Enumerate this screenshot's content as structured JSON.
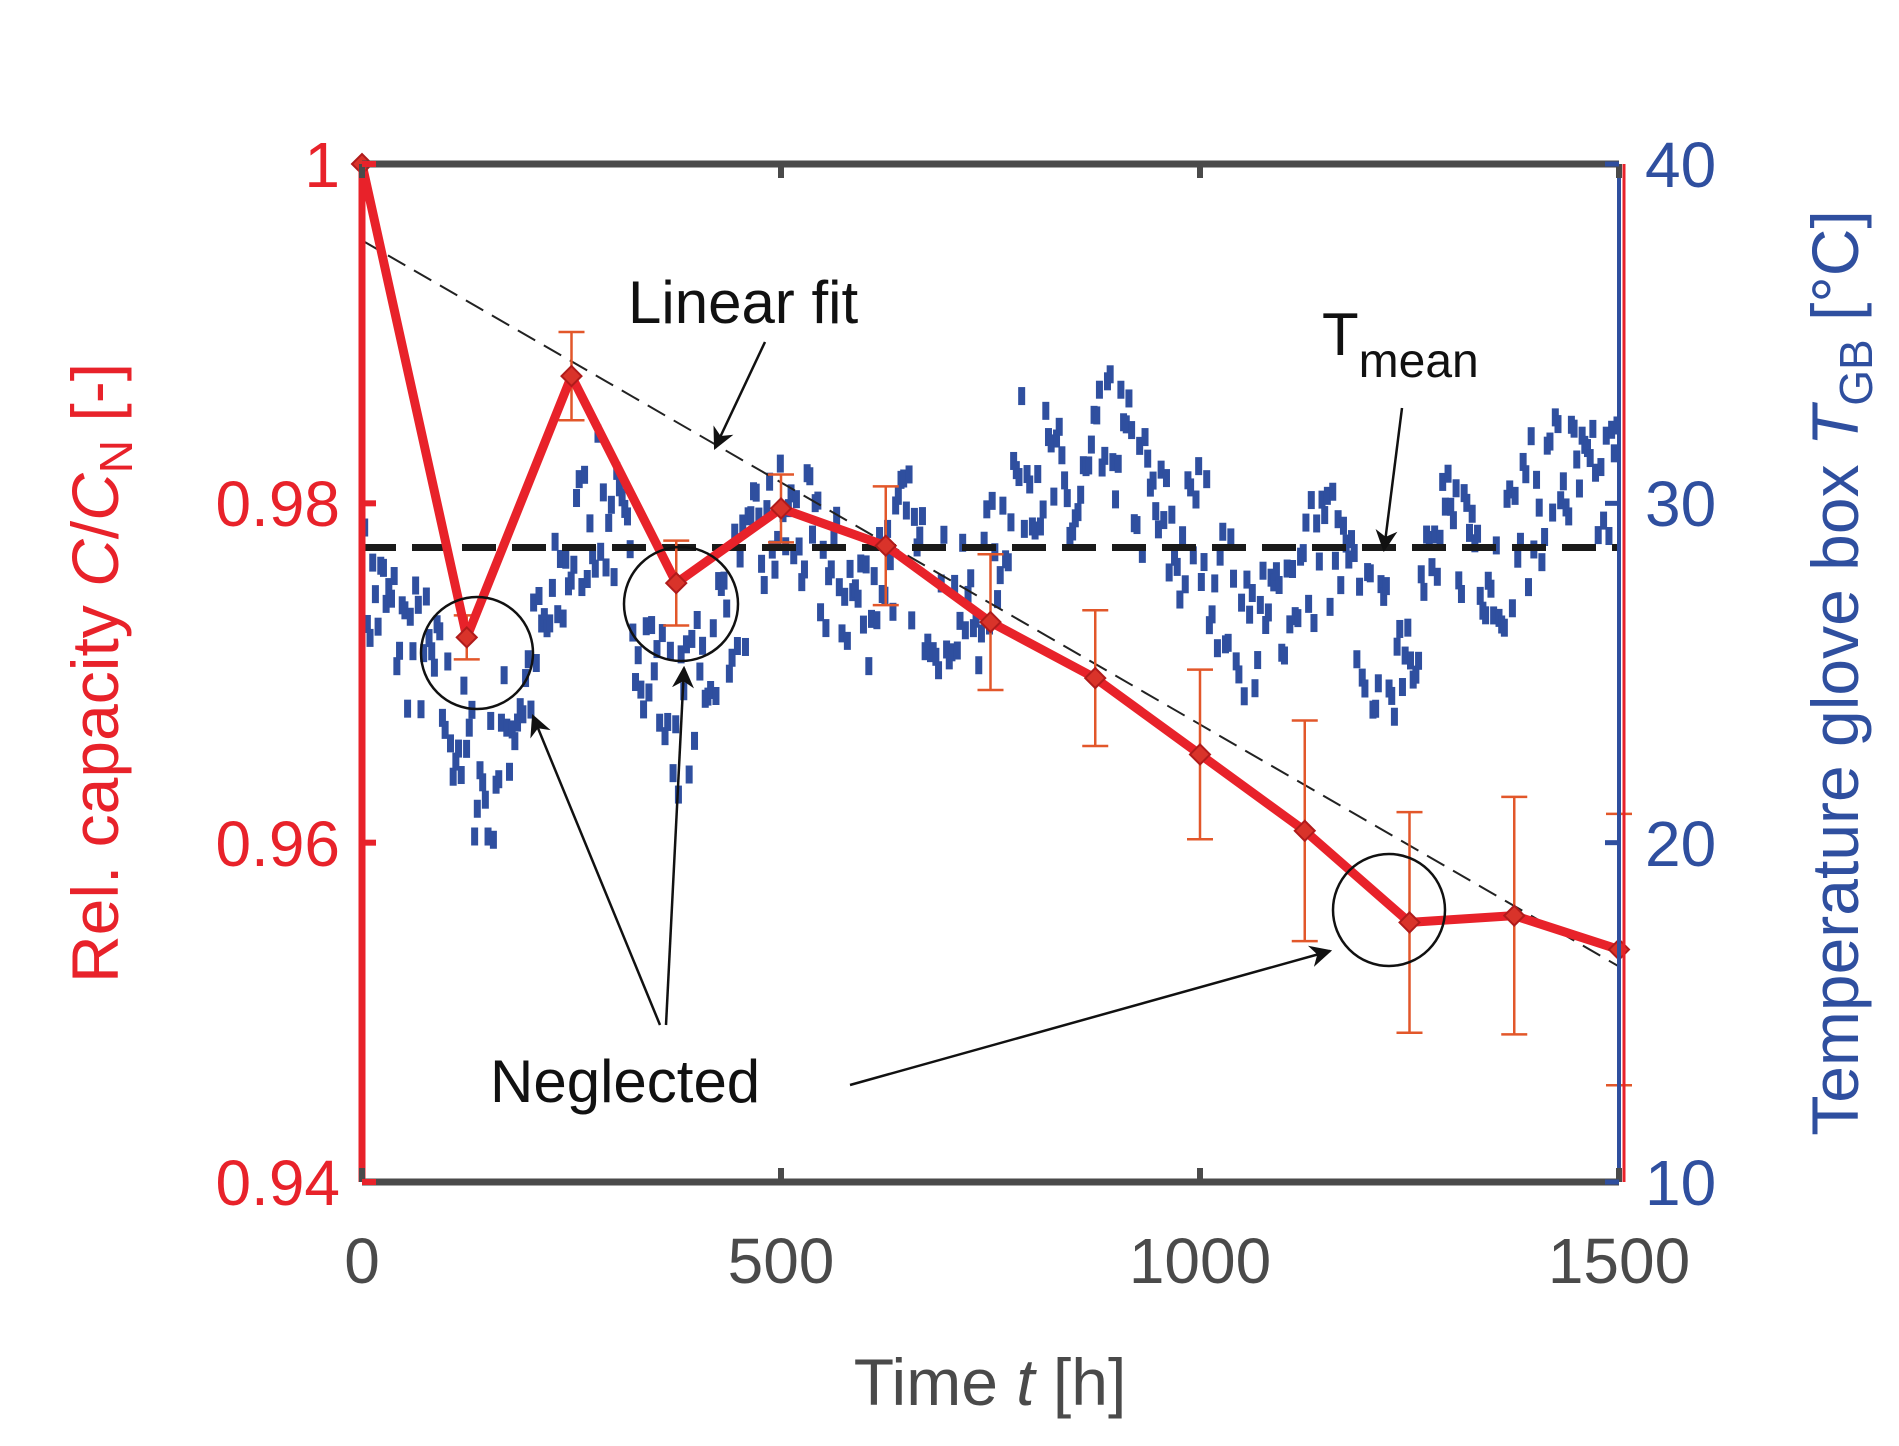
{
  "chart_data": {
    "type": "line",
    "xlabel": {
      "prefix": "Time ",
      "italic": "t",
      "suffix": " [h]"
    },
    "ylabel_left": {
      "prefix": "Rel. capacity ",
      "italic1": "C",
      "slash": "/",
      "italic2": "C",
      "sub": "N",
      "suffix": " [-]"
    },
    "ylabel_right": {
      "prefix": "Temperature glove box ",
      "italic": "T",
      "sub": "GB",
      "suffix": " [°C]"
    },
    "xlim": [
      0,
      1500
    ],
    "ylim_left": [
      0.94,
      1.0
    ],
    "ylim_right": [
      10,
      40
    ],
    "x_ticks": [
      "0",
      "500",
      "1000",
      "1500"
    ],
    "x_tick_values": [
      0,
      500,
      1000,
      1500
    ],
    "y_left_ticks": [
      "0.94",
      "0.96",
      "0.98",
      "1"
    ],
    "y_left_tick_values": [
      0.94,
      0.96,
      0.98,
      1.0
    ],
    "y_right_ticks": [
      "10",
      "20",
      "30",
      "40"
    ],
    "y_right_tick_values": [
      10,
      20,
      30,
      40
    ],
    "series": [
      {
        "name": "Relative capacity",
        "axis": "left",
        "color": "#e8222a",
        "x": [
          0,
          125,
          250,
          375,
          500,
          625,
          750,
          875,
          1000,
          1125,
          1250,
          1375,
          1500
        ],
        "y": [
          1.0,
          0.9721,
          0.9875,
          0.9753,
          0.9797,
          0.9775,
          0.973,
          0.9697,
          0.9652,
          0.9607,
          0.9553,
          0.9557,
          0.9537
        ],
        "err": [
          0.0,
          0.0013,
          0.0026,
          0.0025,
          0.002,
          0.0035,
          0.004,
          0.004,
          0.005,
          0.0065,
          0.0065,
          0.007,
          0.008
        ]
      },
      {
        "name": "Temperature glove box",
        "axis": "right",
        "color": "#2f4f9f",
        "style": "dashes",
        "x": [
          0,
          25,
          50,
          75,
          100,
          125,
          150,
          175,
          200,
          225,
          250,
          275,
          300,
          325,
          350,
          375,
          400,
          425,
          450,
          475,
          500,
          525,
          550,
          575,
          600,
          625,
          650,
          675,
          700,
          725,
          750,
          775,
          800,
          825,
          850,
          875,
          900,
          925,
          950,
          975,
          1000,
          1025,
          1050,
          1075,
          1100,
          1125,
          1150,
          1175,
          1200,
          1225,
          1250,
          1275,
          1300,
          1325,
          1350,
          1375,
          1400,
          1425,
          1450,
          1475,
          1500
        ],
        "y": [
          27.5,
          27.0,
          26.0,
          25.5,
          24.0,
          22.5,
          21.5,
          23.5,
          25.0,
          26.5,
          28.5,
          30.0,
          29.5,
          27.0,
          25.0,
          23.5,
          24.5,
          26.5,
          27.5,
          28.5,
          29.5,
          29.0,
          28.0,
          27.5,
          27.0,
          28.5,
          29.0,
          27.5,
          27.0,
          26.5,
          28.0,
          30.5,
          31.5,
          30.5,
          29.5,
          31.0,
          32.0,
          30.5,
          29.5,
          28.5,
          29.5,
          27.5,
          26.5,
          26.0,
          27.5,
          28.0,
          29.0,
          27.5,
          26.0,
          25.5,
          26.5,
          28.0,
          29.0,
          29.5,
          28.0,
          29.0,
          30.0,
          31.0,
          30.5,
          30.0,
          31.0
        ],
        "mean": 28.7
      },
      {
        "name": "Linear fit",
        "axis": "left",
        "color": "#222222",
        "style": "thin-dashed",
        "x": [
          0,
          1500
        ],
        "y": [
          0.9955,
          0.9527
        ]
      }
    ],
    "annotations": {
      "linear_fit": "Linear fit",
      "t_mean_main": "T",
      "t_mean_sub": "mean",
      "neglected": "Neglected"
    }
  }
}
